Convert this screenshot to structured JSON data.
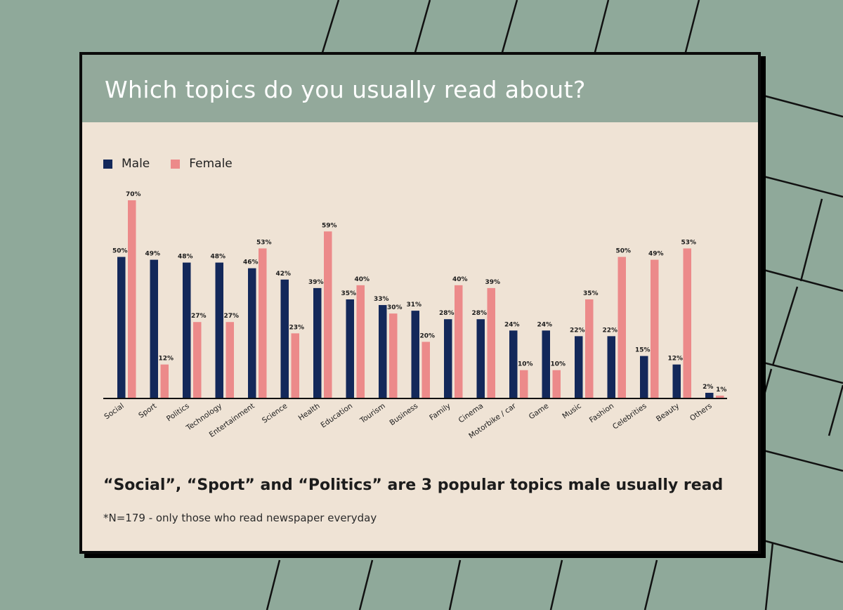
{
  "title": "Which topics do you usually read about?",
  "headline": "“Social”, “Sport” and “Politics” are 3 popular topics male usually read",
  "footnote": "*N=179 - only those who read newspaper everyday",
  "colors": {
    "background": "#8fa99a",
    "header": "#93a99b",
    "card": "#efe3d5",
    "male": "#13285a",
    "female": "#ec8a8a"
  },
  "chart_data": {
    "type": "bar",
    "categories": [
      "Social",
      "Sport",
      "Politics",
      "Technology",
      "Entertainment",
      "Science",
      "Health",
      "Education",
      "Tourism",
      "Business",
      "Family",
      "Cinema",
      "Motorbike / car",
      "Game",
      "Music",
      "Fashion",
      "Celebrities",
      "Beauty",
      "Others"
    ],
    "series": [
      {
        "name": "Male",
        "values": [
          50,
          49,
          48,
          48,
          46,
          42,
          39,
          35,
          33,
          31,
          28,
          28,
          24,
          24,
          22,
          22,
          15,
          12,
          2
        ]
      },
      {
        "name": "Female",
        "values": [
          70,
          12,
          27,
          27,
          53,
          23,
          59,
          40,
          30,
          20,
          40,
          39,
          10,
          10,
          35,
          50,
          49,
          53,
          1
        ]
      }
    ],
    "value_labels": {
      "Male": [
        "50%",
        "49%",
        "48%",
        "48%",
        "46%",
        "42%",
        "39%",
        "35%",
        "33%",
        "31%",
        "28%",
        "28%",
        "24%",
        "24%",
        "22%",
        "22%",
        "15%",
        "12%",
        "2%"
      ],
      "Female": [
        "70%",
        "12%",
        "27%",
        "27%",
        "53%",
        "23%",
        "59%",
        "40%",
        "30%",
        "20%",
        "40%",
        "39%",
        "10%",
        "10%",
        "35%",
        "50%",
        "49%",
        "53%",
        "1%"
      ]
    },
    "ylim": [
      0,
      70
    ],
    "legend_position": "top-left",
    "grid": false
  }
}
